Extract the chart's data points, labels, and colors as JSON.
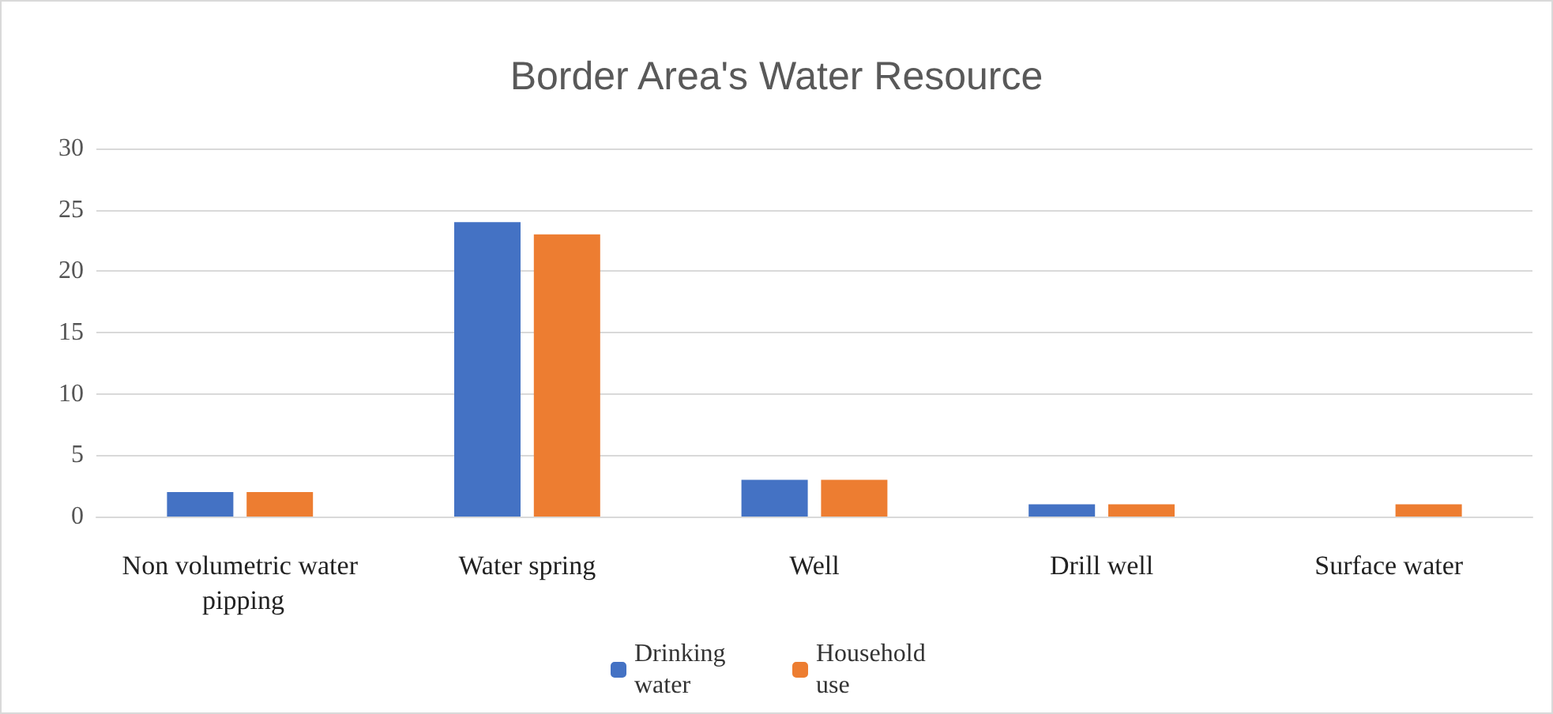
{
  "chart_data": {
    "type": "bar",
    "title": "Border Area's Water Resource",
    "categories": [
      "Non volumetric water pipping",
      "Water spring",
      "Well",
      "Drill well",
      "Surface water"
    ],
    "series": [
      {
        "name": "Drinking water",
        "color": "#4472c4",
        "values": [
          2,
          24,
          3,
          1,
          0
        ]
      },
      {
        "name": "Household use",
        "color": "#ed7d31",
        "values": [
          2,
          23,
          3,
          1,
          1
        ]
      }
    ],
    "ylim": [
      0,
      30
    ],
    "yticks": [
      0,
      5,
      10,
      15,
      20,
      25,
      30
    ],
    "grid": "y",
    "legend": "bottom"
  }
}
